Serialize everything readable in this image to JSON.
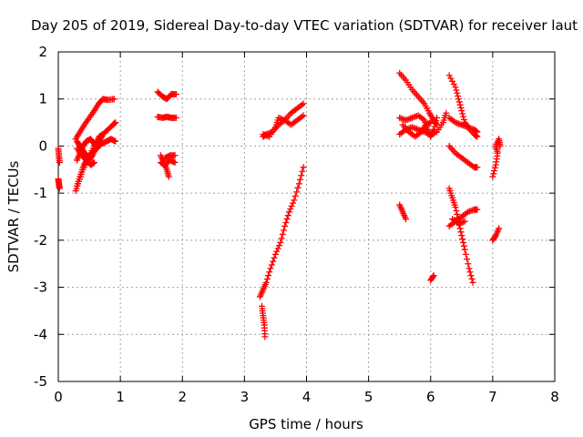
{
  "chart_data": {
    "type": "scatter",
    "title": "Day 205 of 2019, Sidereal Day-to-day VTEC variation (SDTVAR) for receiver laut",
    "xlabel": "GPS time / hours",
    "ylabel": "SDTVAR / TECUs",
    "xlim": [
      0,
      8
    ],
    "ylim": [
      -5,
      2
    ],
    "xticks": [
      0,
      1,
      2,
      3,
      4,
      5,
      6,
      7,
      8
    ],
    "yticks": [
      -5,
      -4,
      -3,
      -2,
      -1,
      0,
      1,
      2
    ],
    "grid": true,
    "marker": "+",
    "color": "#ff0000",
    "segments": [
      [
        [
          0.0,
          -0.05
        ],
        [
          0.01,
          -0.2
        ],
        [
          0.02,
          -0.35
        ]
      ],
      [
        [
          0.0,
          -0.7
        ],
        [
          0.01,
          -0.8
        ],
        [
          0.02,
          -0.9
        ]
      ],
      [
        [
          0.28,
          0.15
        ],
        [
          0.35,
          0.3
        ],
        [
          0.42,
          0.45
        ],
        [
          0.5,
          0.6
        ],
        [
          0.58,
          0.75
        ],
        [
          0.65,
          0.9
        ],
        [
          0.72,
          1.0
        ],
        [
          0.8,
          0.98
        ],
        [
          0.9,
          1.0
        ]
      ],
      [
        [
          0.28,
          -0.95
        ],
        [
          0.33,
          -0.75
        ],
        [
          0.38,
          -0.55
        ],
        [
          0.45,
          -0.35
        ],
        [
          0.52,
          -0.15
        ],
        [
          0.6,
          0.05
        ],
        [
          0.66,
          0.2
        ],
        [
          0.72,
          0.25
        ],
        [
          0.8,
          0.35
        ],
        [
          0.88,
          0.45
        ],
        [
          0.92,
          0.5
        ]
      ],
      [
        [
          0.3,
          -0.85
        ],
        [
          0.35,
          -0.65
        ],
        [
          0.4,
          -0.45
        ],
        [
          0.45,
          -0.3
        ],
        [
          0.5,
          -0.2
        ],
        [
          0.55,
          -0.15
        ],
        [
          0.62,
          -0.05
        ],
        [
          0.7,
          0.05
        ],
        [
          0.78,
          0.1
        ],
        [
          0.85,
          0.15
        ],
        [
          0.92,
          0.1
        ]
      ],
      [
        [
          0.3,
          0.1
        ],
        [
          0.35,
          0.0
        ],
        [
          0.4,
          -0.1
        ],
        [
          0.45,
          -0.2
        ],
        [
          0.5,
          -0.3
        ],
        [
          0.55,
          -0.2
        ],
        [
          0.6,
          -0.05
        ],
        [
          0.65,
          0.1
        ],
        [
          0.7,
          0.2
        ]
      ],
      [
        [
          0.3,
          -0.3
        ],
        [
          0.35,
          -0.15
        ],
        [
          0.4,
          0.0
        ],
        [
          0.45,
          0.1
        ],
        [
          0.52,
          0.15
        ],
        [
          0.58,
          0.05
        ],
        [
          0.62,
          -0.05
        ]
      ],
      [
        [
          0.3,
          -0.05
        ],
        [
          0.38,
          -0.2
        ],
        [
          0.45,
          -0.3
        ],
        [
          0.52,
          -0.4
        ],
        [
          0.58,
          -0.35
        ]
      ],
      [
        [
          1.6,
          1.15
        ],
        [
          1.68,
          1.05
        ],
        [
          1.75,
          1.0
        ],
        [
          1.82,
          1.1
        ],
        [
          1.9,
          1.1
        ]
      ],
      [
        [
          1.6,
          0.62
        ],
        [
          1.68,
          0.6
        ],
        [
          1.75,
          0.62
        ],
        [
          1.82,
          0.6
        ],
        [
          1.9,
          0.6
        ]
      ],
      [
        [
          1.65,
          -0.2
        ],
        [
          1.7,
          -0.35
        ],
        [
          1.75,
          -0.5
        ],
        [
          1.78,
          -0.65
        ]
      ],
      [
        [
          1.65,
          -0.35
        ],
        [
          1.72,
          -0.4
        ],
        [
          1.8,
          -0.3
        ],
        [
          1.88,
          -0.35
        ]
      ],
      [
        [
          1.72,
          -0.25
        ],
        [
          1.8,
          -0.2
        ],
        [
          1.88,
          -0.2
        ]
      ],
      [
        [
          3.3,
          0.2
        ],
        [
          3.35,
          0.25
        ],
        [
          3.45,
          0.3
        ],
        [
          3.55,
          0.45
        ],
        [
          3.65,
          0.55
        ],
        [
          3.75,
          0.7
        ],
        [
          3.85,
          0.8
        ],
        [
          3.95,
          0.9
        ]
      ],
      [
        [
          3.3,
          0.25
        ],
        [
          3.4,
          0.2
        ],
        [
          3.5,
          0.4
        ],
        [
          3.55,
          0.6
        ],
        [
          3.65,
          0.55
        ],
        [
          3.75,
          0.45
        ],
        [
          3.85,
          0.55
        ],
        [
          3.95,
          0.65
        ]
      ],
      [
        [
          3.25,
          -3.2
        ],
        [
          3.3,
          -3.05
        ],
        [
          3.35,
          -2.9
        ],
        [
          3.42,
          -2.6
        ],
        [
          3.5,
          -2.3
        ],
        [
          3.58,
          -2.05
        ],
        [
          3.65,
          -1.7
        ],
        [
          3.72,
          -1.4
        ],
        [
          3.8,
          -1.15
        ],
        [
          3.88,
          -0.8
        ],
        [
          3.95,
          -0.45
        ]
      ],
      [
        [
          3.28,
          -3.4
        ],
        [
          3.3,
          -3.6
        ],
        [
          3.32,
          -3.8
        ],
        [
          3.33,
          -4.05
        ]
      ],
      [
        [
          5.5,
          1.55
        ],
        [
          5.6,
          1.4
        ],
        [
          5.7,
          1.2
        ],
        [
          5.8,
          1.05
        ],
        [
          5.9,
          0.9
        ],
        [
          5.98,
          0.7
        ],
        [
          6.05,
          0.55
        ],
        [
          6.1,
          0.45
        ]
      ],
      [
        [
          5.5,
          0.25
        ],
        [
          5.6,
          0.35
        ],
        [
          5.7,
          0.4
        ],
        [
          5.8,
          0.35
        ],
        [
          5.9,
          0.3
        ],
        [
          6.0,
          0.25
        ],
        [
          6.1,
          0.3
        ],
        [
          6.2,
          0.5
        ],
        [
          6.25,
          0.7
        ]
      ],
      [
        [
          5.5,
          0.6
        ],
        [
          5.6,
          0.55
        ],
        [
          5.7,
          0.6
        ],
        [
          5.8,
          0.65
        ],
        [
          5.9,
          0.55
        ],
        [
          5.95,
          0.35
        ],
        [
          6.0,
          0.2
        ],
        [
          6.05,
          0.35
        ],
        [
          6.1,
          0.6
        ]
      ],
      [
        [
          5.55,
          0.45
        ],
        [
          5.65,
          0.3
        ],
        [
          5.75,
          0.2
        ],
        [
          5.85,
          0.3
        ],
        [
          5.92,
          0.45
        ],
        [
          6.0,
          0.5
        ]
      ],
      [
        [
          5.5,
          -1.25
        ],
        [
          5.55,
          -1.4
        ],
        [
          5.6,
          -1.55
        ]
      ],
      [
        [
          6.0,
          -2.85
        ],
        [
          6.05,
          -2.75
        ]
      ],
      [
        [
          6.3,
          1.5
        ],
        [
          6.4,
          1.25
        ],
        [
          6.45,
          1.0
        ],
        [
          6.5,
          0.75
        ],
        [
          6.55,
          0.5
        ],
        [
          6.6,
          0.4
        ],
        [
          6.7,
          0.25
        ],
        [
          6.75,
          0.2
        ]
      ],
      [
        [
          6.3,
          0.6
        ],
        [
          6.4,
          0.5
        ],
        [
          6.5,
          0.45
        ],
        [
          6.6,
          0.4
        ],
        [
          6.7,
          0.35
        ],
        [
          6.75,
          0.3
        ]
      ],
      [
        [
          6.3,
          0.0
        ],
        [
          6.4,
          -0.15
        ],
        [
          6.5,
          -0.25
        ],
        [
          6.6,
          -0.35
        ],
        [
          6.7,
          -0.45
        ],
        [
          6.75,
          -0.45
        ]
      ],
      [
        [
          6.3,
          -0.9
        ],
        [
          6.35,
          -1.1
        ],
        [
          6.4,
          -1.3
        ],
        [
          6.45,
          -1.6
        ],
        [
          6.5,
          -1.9
        ],
        [
          6.55,
          -2.2
        ],
        [
          6.62,
          -2.6
        ],
        [
          6.68,
          -2.9
        ]
      ],
      [
        [
          6.3,
          -1.7
        ],
        [
          6.4,
          -1.6
        ],
        [
          6.5,
          -1.5
        ],
        [
          6.6,
          -1.4
        ],
        [
          6.7,
          -1.35
        ],
        [
          6.75,
          -1.35
        ]
      ],
      [
        [
          6.35,
          -1.55
        ],
        [
          6.45,
          -1.65
        ],
        [
          6.55,
          -1.6
        ]
      ],
      [
        [
          7.0,
          -0.65
        ],
        [
          7.05,
          -0.4
        ],
        [
          7.08,
          -0.15
        ],
        [
          7.05,
          0.0
        ],
        [
          7.1,
          0.15
        ],
        [
          7.12,
          0.0
        ]
      ],
      [
        [
          7.0,
          -2.0
        ],
        [
          7.05,
          -1.9
        ],
        [
          7.1,
          -1.75
        ]
      ]
    ]
  }
}
